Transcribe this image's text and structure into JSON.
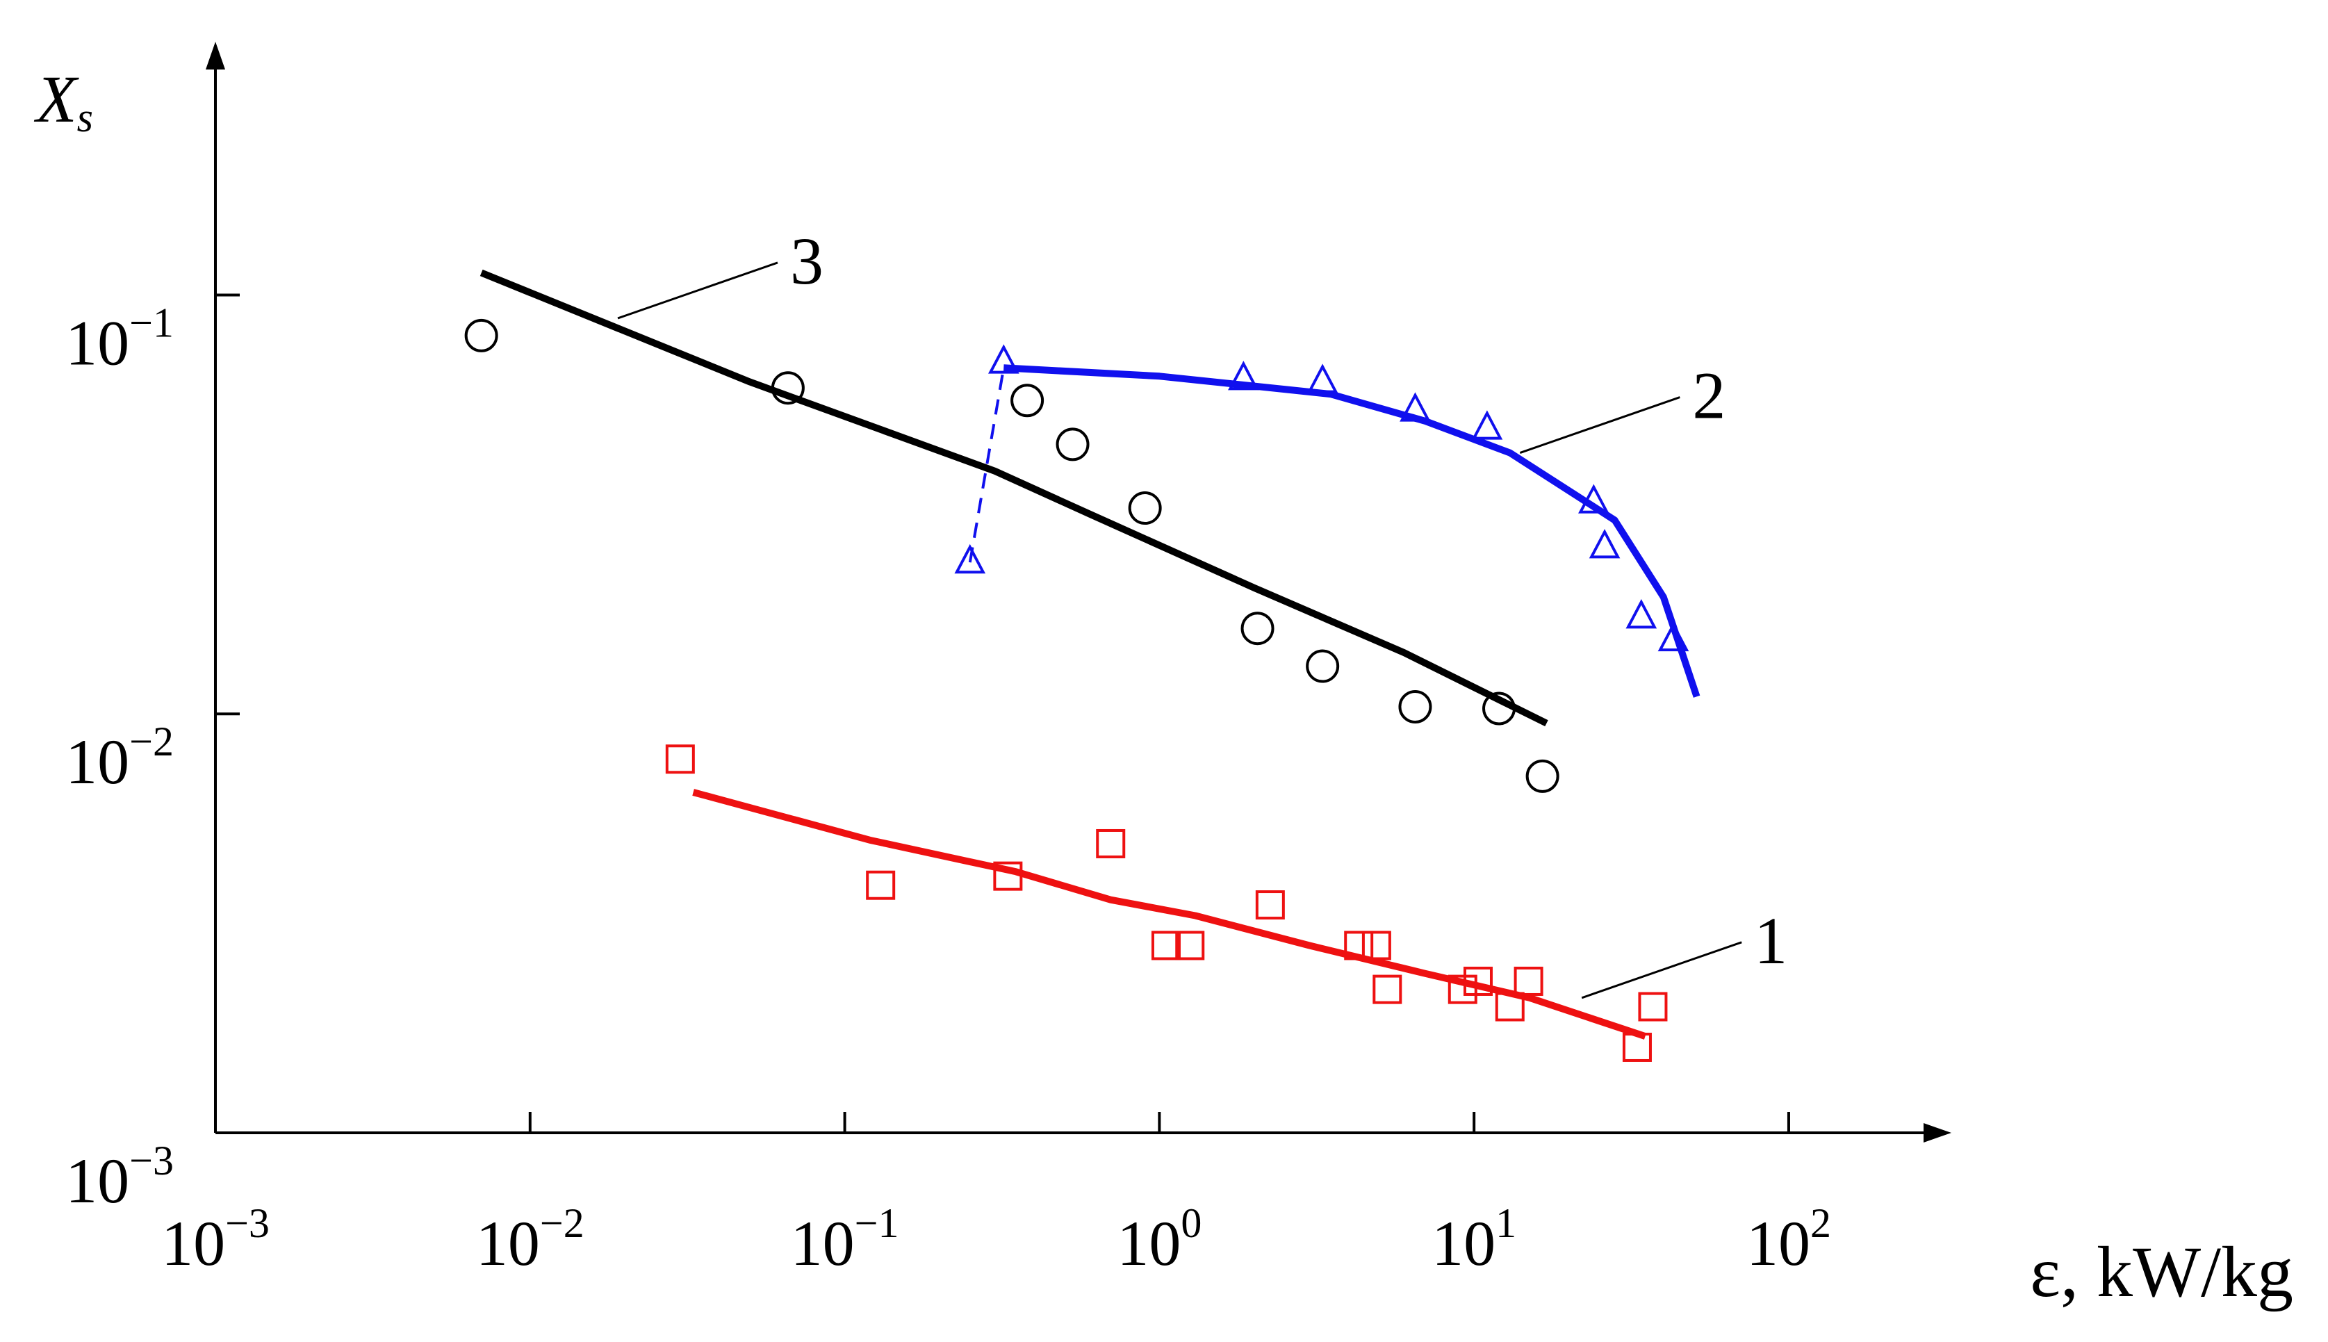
{
  "chart_data": {
    "type": "scatter",
    "xlabel": "ε, kW/kg",
    "ylabel": {
      "main": "X",
      "sub": "s"
    },
    "x_scale": "log",
    "y_scale": "log",
    "xlim": [
      0.001,
      300
    ],
    "ylim": [
      0.001,
      0.38
    ],
    "x_ticks": [
      {
        "value": 0.001,
        "base": "10",
        "exp": "−3"
      },
      {
        "value": 0.01,
        "base": "10",
        "exp": "−2"
      },
      {
        "value": 0.1,
        "base": "10",
        "exp": "−1"
      },
      {
        "value": 1,
        "base": "10",
        "exp": "0"
      },
      {
        "value": 10,
        "base": "10",
        "exp": "1"
      },
      {
        "value": 100,
        "base": "10",
        "exp": "2"
      }
    ],
    "y_ticks": [
      {
        "value": 0.001,
        "base": "10",
        "exp": "−3"
      },
      {
        "value": 0.01,
        "base": "10",
        "exp": "−2"
      },
      {
        "value": 0.1,
        "base": "10",
        "exp": "−1"
      }
    ],
    "grid": false,
    "legend": "none",
    "series": [
      {
        "label": "1",
        "color": "#ee1111",
        "marker": "square",
        "points": [
          [
            0.03,
            0.0078
          ],
          [
            0.13,
            0.0039
          ],
          [
            0.33,
            0.0041
          ],
          [
            0.7,
            0.0049
          ],
          [
            1.05,
            0.0028
          ],
          [
            1.25,
            0.0028
          ],
          [
            2.25,
            0.0035
          ],
          [
            4.3,
            0.0028
          ],
          [
            4.9,
            0.0028
          ],
          [
            5.3,
            0.0022
          ],
          [
            9.2,
            0.0022
          ],
          [
            10.3,
            0.0023
          ],
          [
            13.0,
            0.002
          ],
          [
            14.9,
            0.0023
          ],
          [
            33.0,
            0.0016
          ],
          [
            37.0,
            0.002
          ]
        ],
        "fit": [
          [
            0.033,
            0.0065
          ],
          [
            0.12,
            0.005
          ],
          [
            0.35,
            0.0042
          ],
          [
            0.7,
            0.0036
          ],
          [
            1.3,
            0.0033
          ],
          [
            3.0,
            0.0028
          ],
          [
            7.0,
            0.0024
          ],
          [
            15.0,
            0.0021
          ],
          [
            35.0,
            0.0017
          ]
        ]
      },
      {
        "label": "2",
        "color": "#1010ee",
        "marker": "triangle",
        "points": [
          [
            0.25,
            0.023
          ],
          [
            0.32,
            0.069
          ],
          [
            1.85,
            0.063
          ],
          [
            3.3,
            0.062
          ],
          [
            6.5,
            0.053
          ],
          [
            11.0,
            0.048
          ],
          [
            24.0,
            0.032
          ],
          [
            26.0,
            0.025
          ],
          [
            34.0,
            0.017
          ],
          [
            43.0,
            0.015
          ]
        ],
        "fit": [
          [
            0.32,
            0.067
          ],
          [
            1.0,
            0.064
          ],
          [
            3.5,
            0.058
          ],
          [
            7.0,
            0.05
          ],
          [
            13.0,
            0.042
          ],
          [
            28.0,
            0.029
          ],
          [
            40.0,
            0.019
          ],
          [
            51.0,
            0.011
          ]
        ],
        "dashed_segment": [
          [
            0.25,
            0.023
          ],
          [
            0.32,
            0.067
          ]
        ]
      },
      {
        "label": "3",
        "color": "#000000",
        "marker": "circle",
        "points": [
          [
            0.007,
            0.08
          ],
          [
            0.066,
            0.06
          ],
          [
            0.38,
            0.056
          ],
          [
            0.53,
            0.044
          ],
          [
            0.9,
            0.031
          ],
          [
            2.05,
            0.016
          ],
          [
            3.3,
            0.013
          ],
          [
            6.5,
            0.0104
          ],
          [
            12.0,
            0.0103
          ],
          [
            16.5,
            0.0071
          ]
        ],
        "fit": [
          [
            0.007,
            0.113
          ],
          [
            0.05,
            0.062
          ],
          [
            0.3,
            0.038
          ],
          [
            0.6,
            0.03
          ],
          [
            2.0,
            0.02
          ],
          [
            6.0,
            0.014
          ],
          [
            17.0,
            0.0095
          ]
        ]
      }
    ],
    "callouts": [
      {
        "series": "1",
        "text": "1",
        "at": [
          22.0,
          0.0021
        ]
      },
      {
        "series": "2",
        "text": "2",
        "at": [
          14.0,
          0.042
        ]
      },
      {
        "series": "3",
        "text": "3",
        "at": [
          0.019,
          0.088
        ]
      }
    ]
  }
}
